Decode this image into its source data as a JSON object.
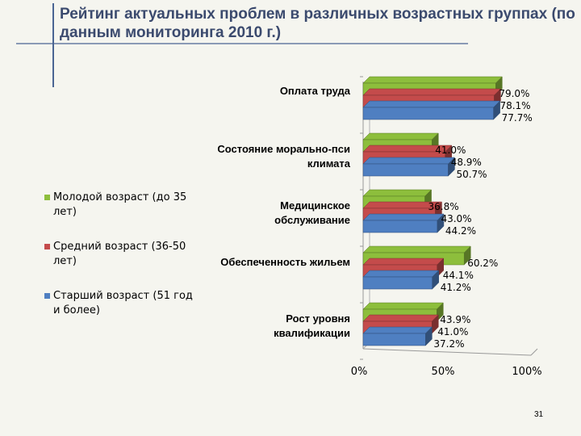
{
  "slide": {
    "title": "Рейтинг актуальных проблем в различных возрастных группах (по данным мониторинга 2010 г.)",
    "page_number": "31"
  },
  "colors": {
    "young": "#8dbe3c",
    "middle": "#c44b4b",
    "senior": "#4f7fc1",
    "accent_lines": "#4a6593",
    "background": "#f5f5ef"
  },
  "chart_data": {
    "type": "bar",
    "orientation": "horizontal",
    "title": "",
    "xlabel": "",
    "ylabel": "",
    "xlim": [
      0,
      100
    ],
    "x_ticks": [
      "0%",
      "50%",
      "100%"
    ],
    "legend_position": "left",
    "categories": [
      "Оплата труда",
      "Состояние морально-пси климата",
      "Медицинское обслуживание",
      "Обеспеченность жильем",
      "Рост уровня квалификации"
    ],
    "series": [
      {
        "name": "Молодой возраст (до 35 лет)",
        "values": [
          79.0,
          41.0,
          36.8,
          60.2,
          43.9
        ],
        "labels": [
          "79.0%",
          "41.0%",
          "36.8%",
          "60.2%",
          "43.9%"
        ]
      },
      {
        "name": "Средний возраст (36-50 лет)",
        "values": [
          78.1,
          48.9,
          43.0,
          44.1,
          41.0
        ],
        "labels": [
          "78.1%",
          "48.9%",
          "43.0%",
          "44.1%",
          "41.0%"
        ]
      },
      {
        "name": "Старший возраст (51 год и более)",
        "values": [
          77.7,
          50.7,
          44.2,
          41.2,
          37.2
        ],
        "labels": [
          "77.7%",
          "50.7%",
          "44.2%",
          "41.2%",
          "37.2%"
        ]
      }
    ]
  }
}
